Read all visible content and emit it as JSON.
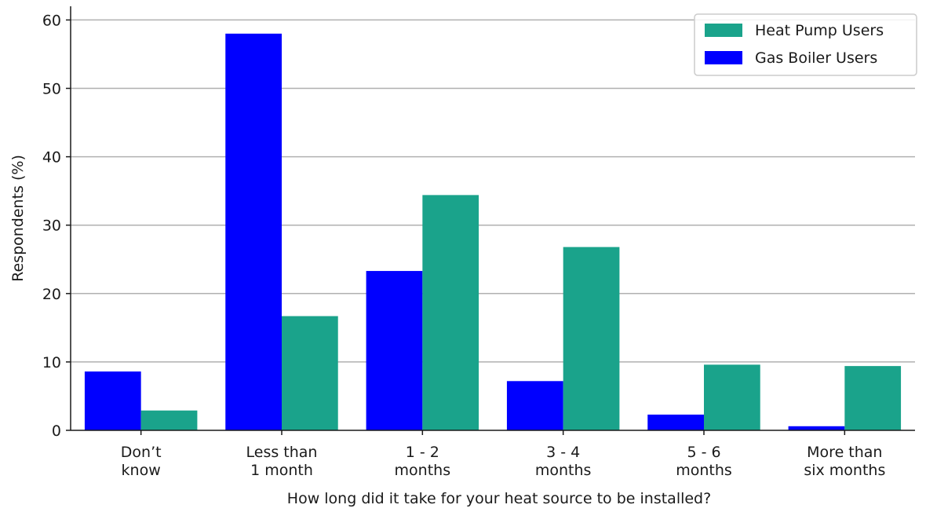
{
  "chart_data": {
    "type": "bar",
    "title": "",
    "xlabel": "How long did it take for your heat source to be installed?",
    "ylabel": "Respondents (%)",
    "ylim": [
      0,
      62
    ],
    "yticks": [
      0,
      10,
      20,
      30,
      40,
      50,
      60
    ],
    "grid": "y-major",
    "legend_position": "top-right",
    "categories": [
      [
        "Don’t",
        "know"
      ],
      [
        "Less than",
        "1 month"
      ],
      [
        "1 - 2",
        "months"
      ],
      [
        "3 - 4",
        "months"
      ],
      [
        "5 - 6",
        "months"
      ],
      [
        "More than",
        "six months"
      ]
    ],
    "series": [
      {
        "name": "Gas Boiler Users",
        "color": "#0000ff",
        "values": [
          8.6,
          58.0,
          23.3,
          7.2,
          2.3,
          0.6
        ]
      },
      {
        "name": "Heat Pump Users",
        "color": "#1aa38b",
        "values": [
          2.9,
          16.7,
          34.4,
          26.8,
          9.6,
          9.4
        ]
      }
    ],
    "legend_order": [
      "Heat Pump Users",
      "Gas Boiler Users"
    ]
  }
}
